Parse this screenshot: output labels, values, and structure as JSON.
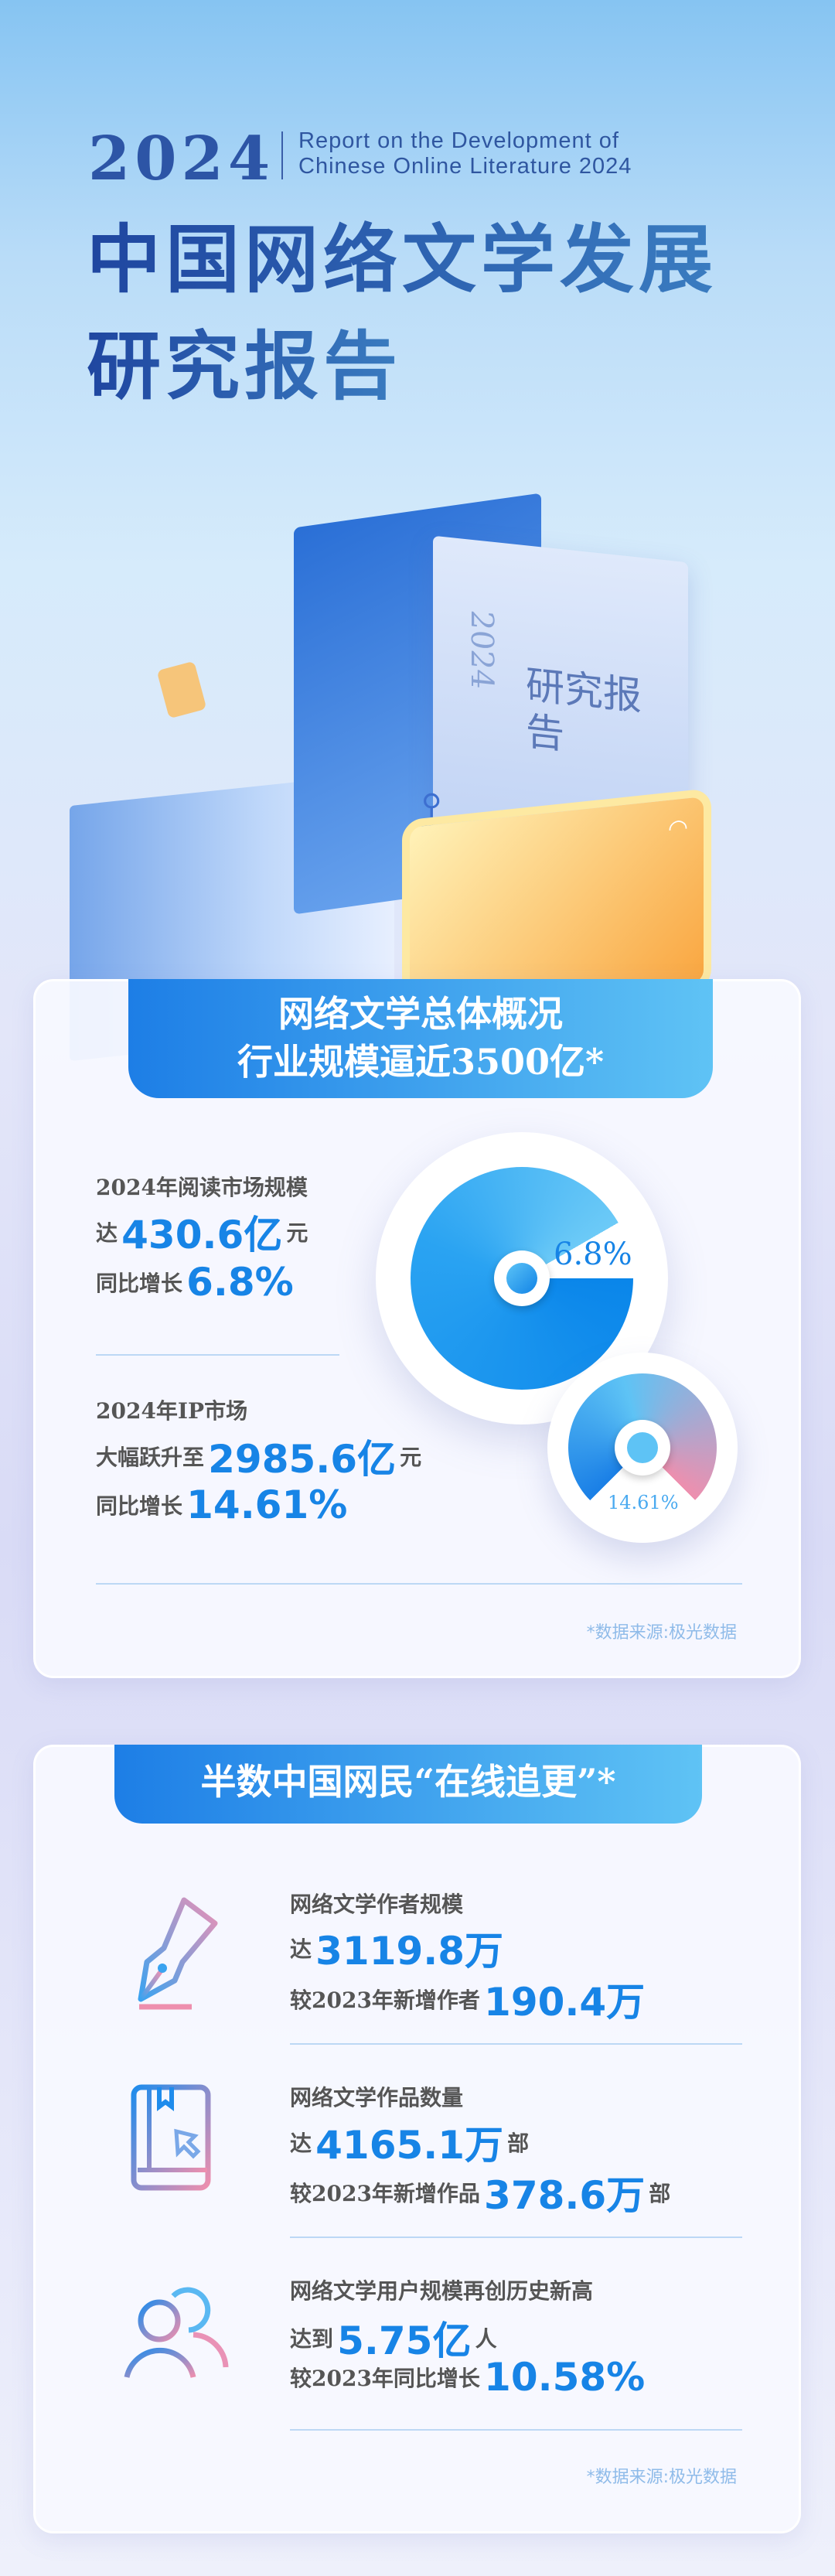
{
  "header": {
    "year": "2024",
    "english_line1": "Report on the Development  of",
    "english_line2": "Chinese Online Literature 2024",
    "title_line1": "中国网络文学发展",
    "title_line2": "研究报告"
  },
  "illustration": {
    "book_cover_text": "研究报告",
    "book_cover_year": "2024"
  },
  "overview": {
    "banner_line1": "网络文学总体概况",
    "banner_line2": "行业规模逼近3500亿*",
    "reading": {
      "label": "2024年阅读市场规模",
      "prefix": "达",
      "value": "430.6亿",
      "unit": "元",
      "growth_label": "同比增长",
      "growth": "6.8%",
      "chart_label": "6.8%",
      "chart_percent": 6.8
    },
    "ip": {
      "label": "2024年IP市场",
      "prefix": "大幅跃升至",
      "value": "2985.6亿",
      "unit": "元",
      "growth_label": "同比增长",
      "growth": "14.61%",
      "chart_label": "14.61%",
      "chart_percent": 14.61
    },
    "source": "*数据来源:极光数据"
  },
  "netizens": {
    "banner": "半数中国网民“在线追更”*",
    "items": [
      {
        "icon": "fountain-pen-icon",
        "label": "网络文学作者规模",
        "prefix": "达",
        "value": "3119.8万",
        "unit": "",
        "sub_label": "较2023年新增作者",
        "sub_value": "190.4万",
        "sub_unit": ""
      },
      {
        "icon": "book-icon",
        "label": "网络文学作品数量",
        "prefix": "达",
        "value": "4165.1万",
        "unit": "部",
        "sub_label": "较2023年新增作品",
        "sub_value": "378.6万",
        "sub_unit": "部"
      },
      {
        "icon": "users-icon",
        "label": "网络文学用户规模再创历史新高",
        "prefix": "达到",
        "value": "5.75亿",
        "unit": "人",
        "sub_label": "较2023年同比增长",
        "sub_value": "10.58%",
        "sub_unit": ""
      }
    ],
    "source": "*数据来源:极光数据"
  },
  "colors": {
    "accent": "#1784e6",
    "title": "#2b56a8",
    "pink": "#ee8fae"
  }
}
